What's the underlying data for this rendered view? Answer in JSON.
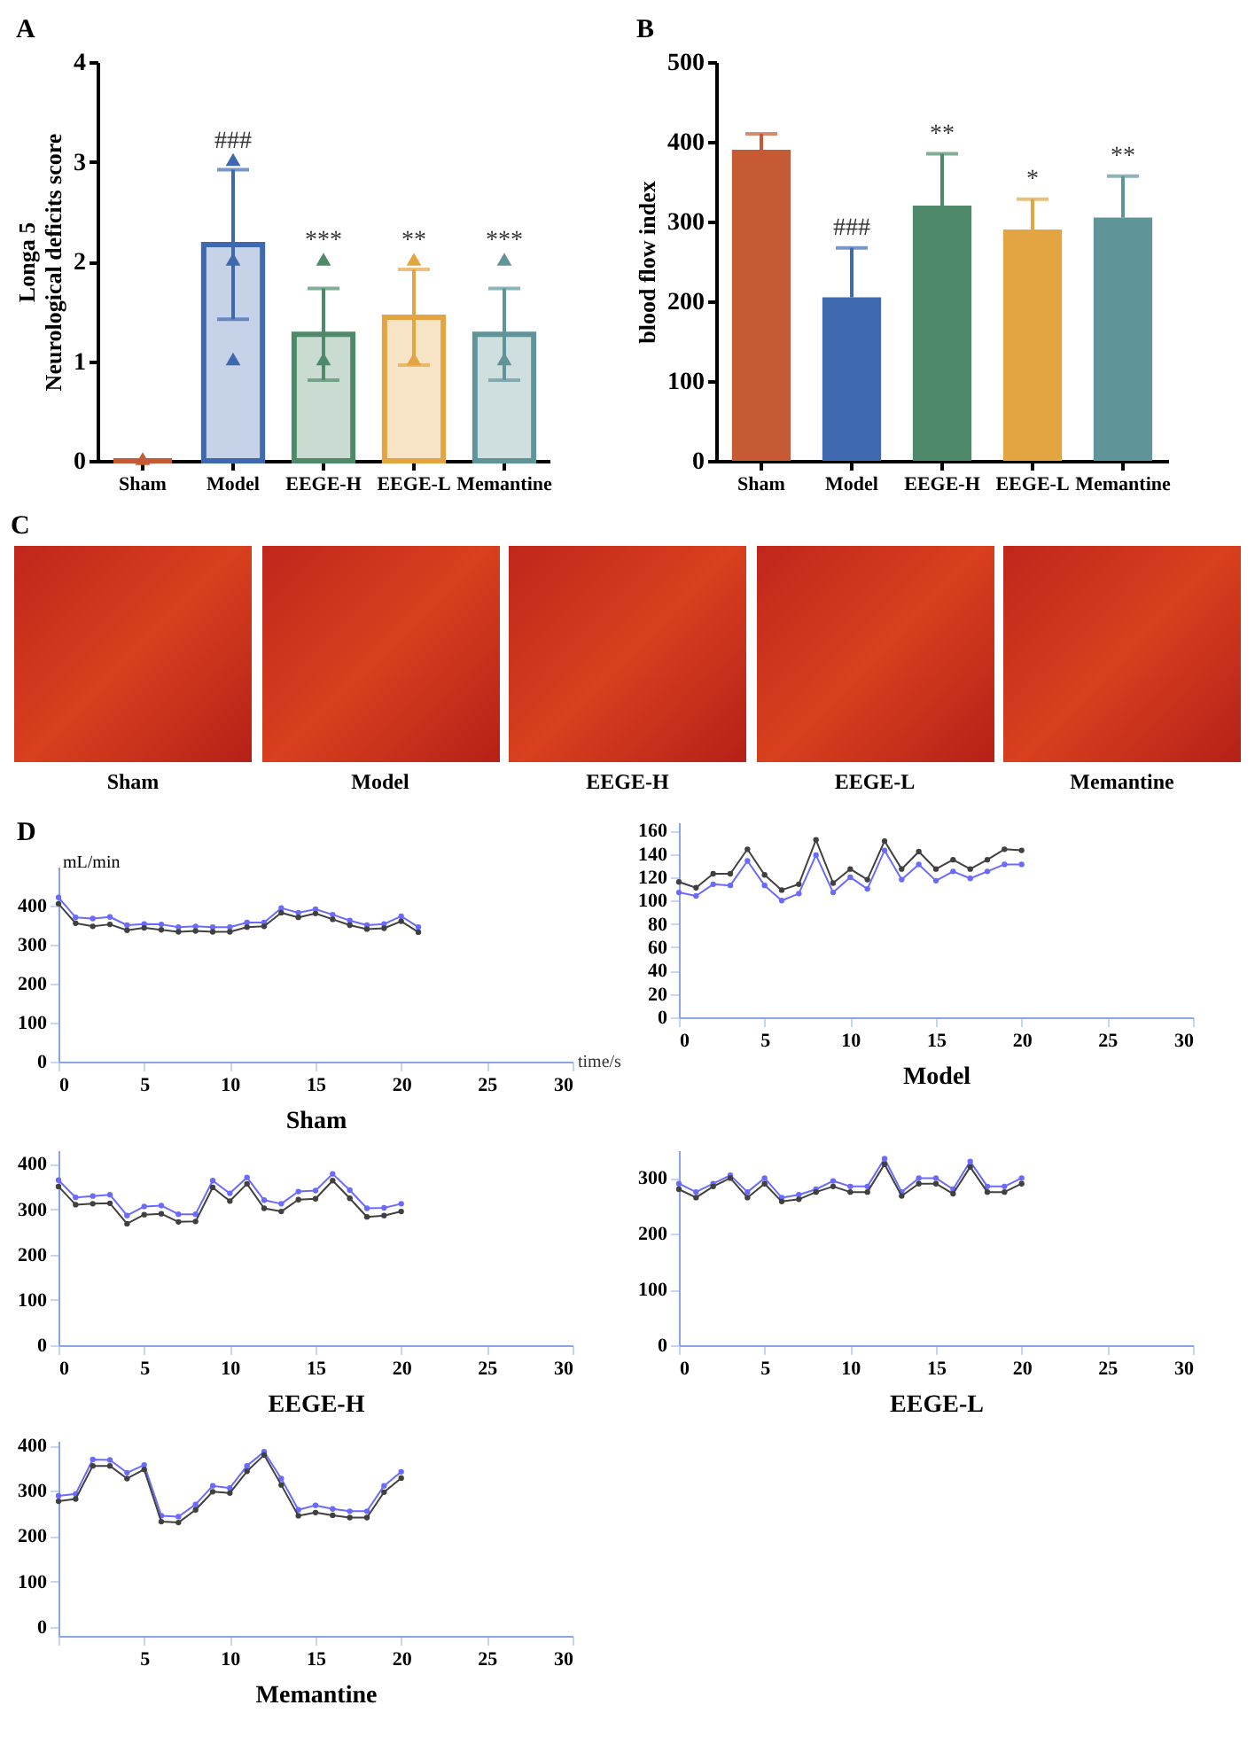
{
  "chart_data": [
    {
      "type": "bar",
      "title": "A",
      "ylabel": "Longa 5\nNeurological deficits score",
      "categories": [
        "Sham",
        "Model",
        "EEGE-H",
        "EEGE-L",
        "Memantine"
      ],
      "values": [
        0,
        2.17,
        1.27,
        1.44,
        1.27
      ],
      "colors": [
        "#c55a35",
        "#3e69b0",
        "#4e8a6a",
        "#e3a541",
        "#5f9499"
      ],
      "errors": [
        null,
        0.75,
        0.46,
        0.48,
        0.46
      ],
      "ylim": [
        0,
        4
      ],
      "yticks": [
        0,
        1,
        2,
        3,
        4
      ],
      "grid": false,
      "marker": "triangle",
      "series": [
        {
          "type": "scatter",
          "x": [
            "Sham",
            "Model",
            "Model",
            "Model",
            "EEGE-H",
            "EEGE-H",
            "EEGE-L",
            "EEGE-L",
            "Memantine",
            "Memantine"
          ],
          "values": [
            0,
            3,
            2,
            1,
            2,
            1,
            2,
            1,
            2,
            1
          ],
          "colors": [
            "#c55a35",
            "#3e69b0",
            "#3e69b0",
            "#3e69b0",
            "#4e8a6a",
            "#4e8a6a",
            "#e3a541",
            "#e3a541",
            "#5f9499",
            "#5f9499"
          ]
        }
      ],
      "annotations": [
        {
          "text": "###",
          "x": "Model",
          "y": 3.05
        },
        {
          "text": "***",
          "x": "EEGE-H",
          "y": 2.05
        },
        {
          "text": "**",
          "x": "EEGE-L",
          "y": 2.05
        },
        {
          "text": "***",
          "x": "Memantine",
          "y": 2.05
        }
      ]
    },
    {
      "type": "bar",
      "title": "B",
      "ylabel": "blood flow index",
      "categories": [
        "Sham",
        "Model",
        "EEGE-H",
        "EEGE-L",
        "Memantine"
      ],
      "values": [
        390,
        205,
        320,
        290,
        305
      ],
      "colors": [
        "#c55a35",
        "#3f6ab0",
        "#4e8a6a",
        "#e3a541",
        "#5f9499"
      ],
      "errors": [
        [
          390,
          410
        ],
        [
          205,
          267
        ],
        [
          320,
          385
        ],
        [
          290,
          328
        ],
        [
          305,
          357
        ]
      ],
      "ylim": [
        0,
        500
      ],
      "yticks": [
        0,
        100,
        200,
        300,
        400,
        500
      ],
      "grid": false,
      "annotations": [
        {
          "text": "###",
          "x": "Model",
          "y": 272
        },
        {
          "text": "**",
          "x": "EEGE-H",
          "y": 390
        },
        {
          "text": "*",
          "x": "EEGE-L",
          "y": 333
        },
        {
          "text": "**",
          "x": "Memantine",
          "y": 362
        }
      ]
    },
    {
      "type": "other",
      "title": "C",
      "categories": [
        "Sham",
        "Model",
        "EEGE-H",
        "EEGE-L",
        "Memantine"
      ]
    },
    {
      "type": "line",
      "title": "D",
      "xlabel": "Sham",
      "ylabel": "mL/min",
      "annotations": [
        "time/s"
      ],
      "xlim": [
        0,
        30
      ],
      "xticks": [
        0,
        5,
        10,
        15,
        20,
        25,
        30
      ],
      "ylim": [
        0,
        500
      ],
      "yticks": [
        0,
        100,
        200,
        300,
        400
      ],
      "grid": false,
      "marker": "circle",
      "x": [
        0,
        1,
        2,
        3,
        4,
        5,
        6,
        7,
        8,
        9,
        10,
        11,
        12,
        13,
        14,
        15,
        16,
        17,
        18,
        19,
        20,
        21
      ],
      "series": [
        {
          "color": "#6a6aff",
          "values": [
            421,
            370,
            367,
            371,
            350,
            353,
            352,
            345,
            347,
            345,
            345,
            357,
            357,
            394,
            382,
            391,
            377,
            362,
            350,
            353,
            373,
            345
          ]
        },
        {
          "color": "#404040",
          "values": [
            405,
            355,
            347,
            352,
            337,
            343,
            338,
            333,
            335,
            333,
            333,
            345,
            347,
            382,
            370,
            380,
            365,
            350,
            340,
            342,
            360,
            332
          ]
        }
      ]
    },
    {
      "type": "line",
      "xlabel": "Model",
      "xlim": [
        0,
        30
      ],
      "xticks": [
        0,
        5,
        10,
        15,
        20,
        25,
        30
      ],
      "ylim": [
        0,
        167
      ],
      "yticks": [
        0,
        20,
        40,
        60,
        80,
        100,
        120,
        140,
        160
      ],
      "grid": false,
      "marker": "circle",
      "x": [
        0,
        1,
        2,
        3,
        4,
        5,
        6,
        7,
        8,
        9,
        10,
        11,
        12,
        13,
        14,
        15,
        16,
        17,
        18,
        19,
        20
      ],
      "series": [
        {
          "color": "#404040",
          "values": [
            116,
            111,
            123,
            123,
            144,
            122,
            109,
            114,
            152,
            115,
            127,
            118,
            151,
            127,
            142,
            127,
            135,
            127,
            135,
            144,
            143
          ]
        },
        {
          "color": "#6a6aff",
          "values": [
            107,
            104,
            114,
            113,
            134,
            113,
            100,
            106,
            139,
            107,
            120,
            110,
            143,
            118,
            131,
            117,
            125,
            119,
            125,
            131,
            131
          ]
        }
      ]
    },
    {
      "type": "line",
      "xlabel": "EEGE-H",
      "xlim": [
        0,
        30
      ],
      "xticks": [
        0,
        5,
        10,
        15,
        20,
        25,
        30
      ],
      "ylim": [
        0,
        430
      ],
      "yticks": [
        0,
        100,
        200,
        300,
        400
      ],
      "grid": false,
      "marker": "circle",
      "x": [
        0,
        1,
        2,
        3,
        4,
        5,
        6,
        7,
        8,
        9,
        10,
        11,
        12,
        13,
        14,
        15,
        16,
        17,
        18,
        19,
        20
      ],
      "series": [
        {
          "color": "#6a6aff",
          "values": [
            364,
            326,
            329,
            332,
            286,
            306,
            308,
            289,
            289,
            363,
            335,
            370,
            320,
            312,
            339,
            341,
            378,
            342,
            302,
            303,
            312
          ]
        },
        {
          "color": "#404040",
          "values": [
            350,
            310,
            312,
            313,
            268,
            288,
            290,
            272,
            273,
            348,
            318,
            356,
            302,
            295,
            321,
            323,
            363,
            324,
            283,
            286,
            295
          ]
        }
      ]
    },
    {
      "type": "line",
      "xlabel": "EEGE-L",
      "xlim": [
        0,
        30
      ],
      "xticks": [
        0,
        5,
        10,
        15,
        20,
        25,
        30
      ],
      "ylim": [
        0,
        350
      ],
      "yticks": [
        0,
        100,
        200,
        300
      ],
      "grid": false,
      "marker": "circle",
      "x": [
        0,
        1,
        2,
        3,
        4,
        5,
        6,
        7,
        8,
        9,
        10,
        11,
        12,
        13,
        14,
        15,
        16,
        17,
        18,
        19,
        20
      ],
      "series": [
        {
          "color": "#6a6aff",
          "values": [
            290,
            275,
            290,
            305,
            275,
            300,
            265,
            270,
            280,
            295,
            285,
            285,
            335,
            275,
            300,
            300,
            280,
            330,
            285,
            285,
            300
          ]
        },
        {
          "color": "#404040",
          "values": [
            280,
            265,
            285,
            300,
            265,
            290,
            258,
            262,
            275,
            285,
            275,
            275,
            325,
            268,
            290,
            290,
            272,
            320,
            275,
            275,
            290
          ]
        }
      ]
    },
    {
      "type": "line",
      "xlabel": "Memantine",
      "xlim": [
        0,
        30
      ],
      "xticks": [
        {
          "value": 0,
          "label": null
        },
        5,
        10,
        15,
        20,
        25,
        30
      ],
      "ylim": [
        -20,
        410
      ],
      "yticks": [
        0,
        100,
        200,
        300,
        400
      ],
      "grid": false,
      "marker": "circle",
      "x": [
        0,
        1,
        2,
        3,
        4,
        5,
        6,
        7,
        8,
        9,
        10,
        11,
        12,
        13,
        14,
        15,
        16,
        17,
        18,
        19,
        20
      ],
      "series": [
        {
          "color": "#6a6aff",
          "values": [
            289,
            293,
            369,
            368,
            340,
            357,
            245,
            243,
            270,
            311,
            306,
            355,
            386,
            327,
            258,
            268,
            260,
            255,
            255,
            311,
            342
          ]
        },
        {
          "color": "#404040",
          "values": [
            277,
            282,
            355,
            355,
            327,
            347,
            232,
            230,
            258,
            298,
            295,
            343,
            379,
            313,
            245,
            252,
            246,
            241,
            241,
            297,
            328
          ]
        }
      ]
    }
  ]
}
